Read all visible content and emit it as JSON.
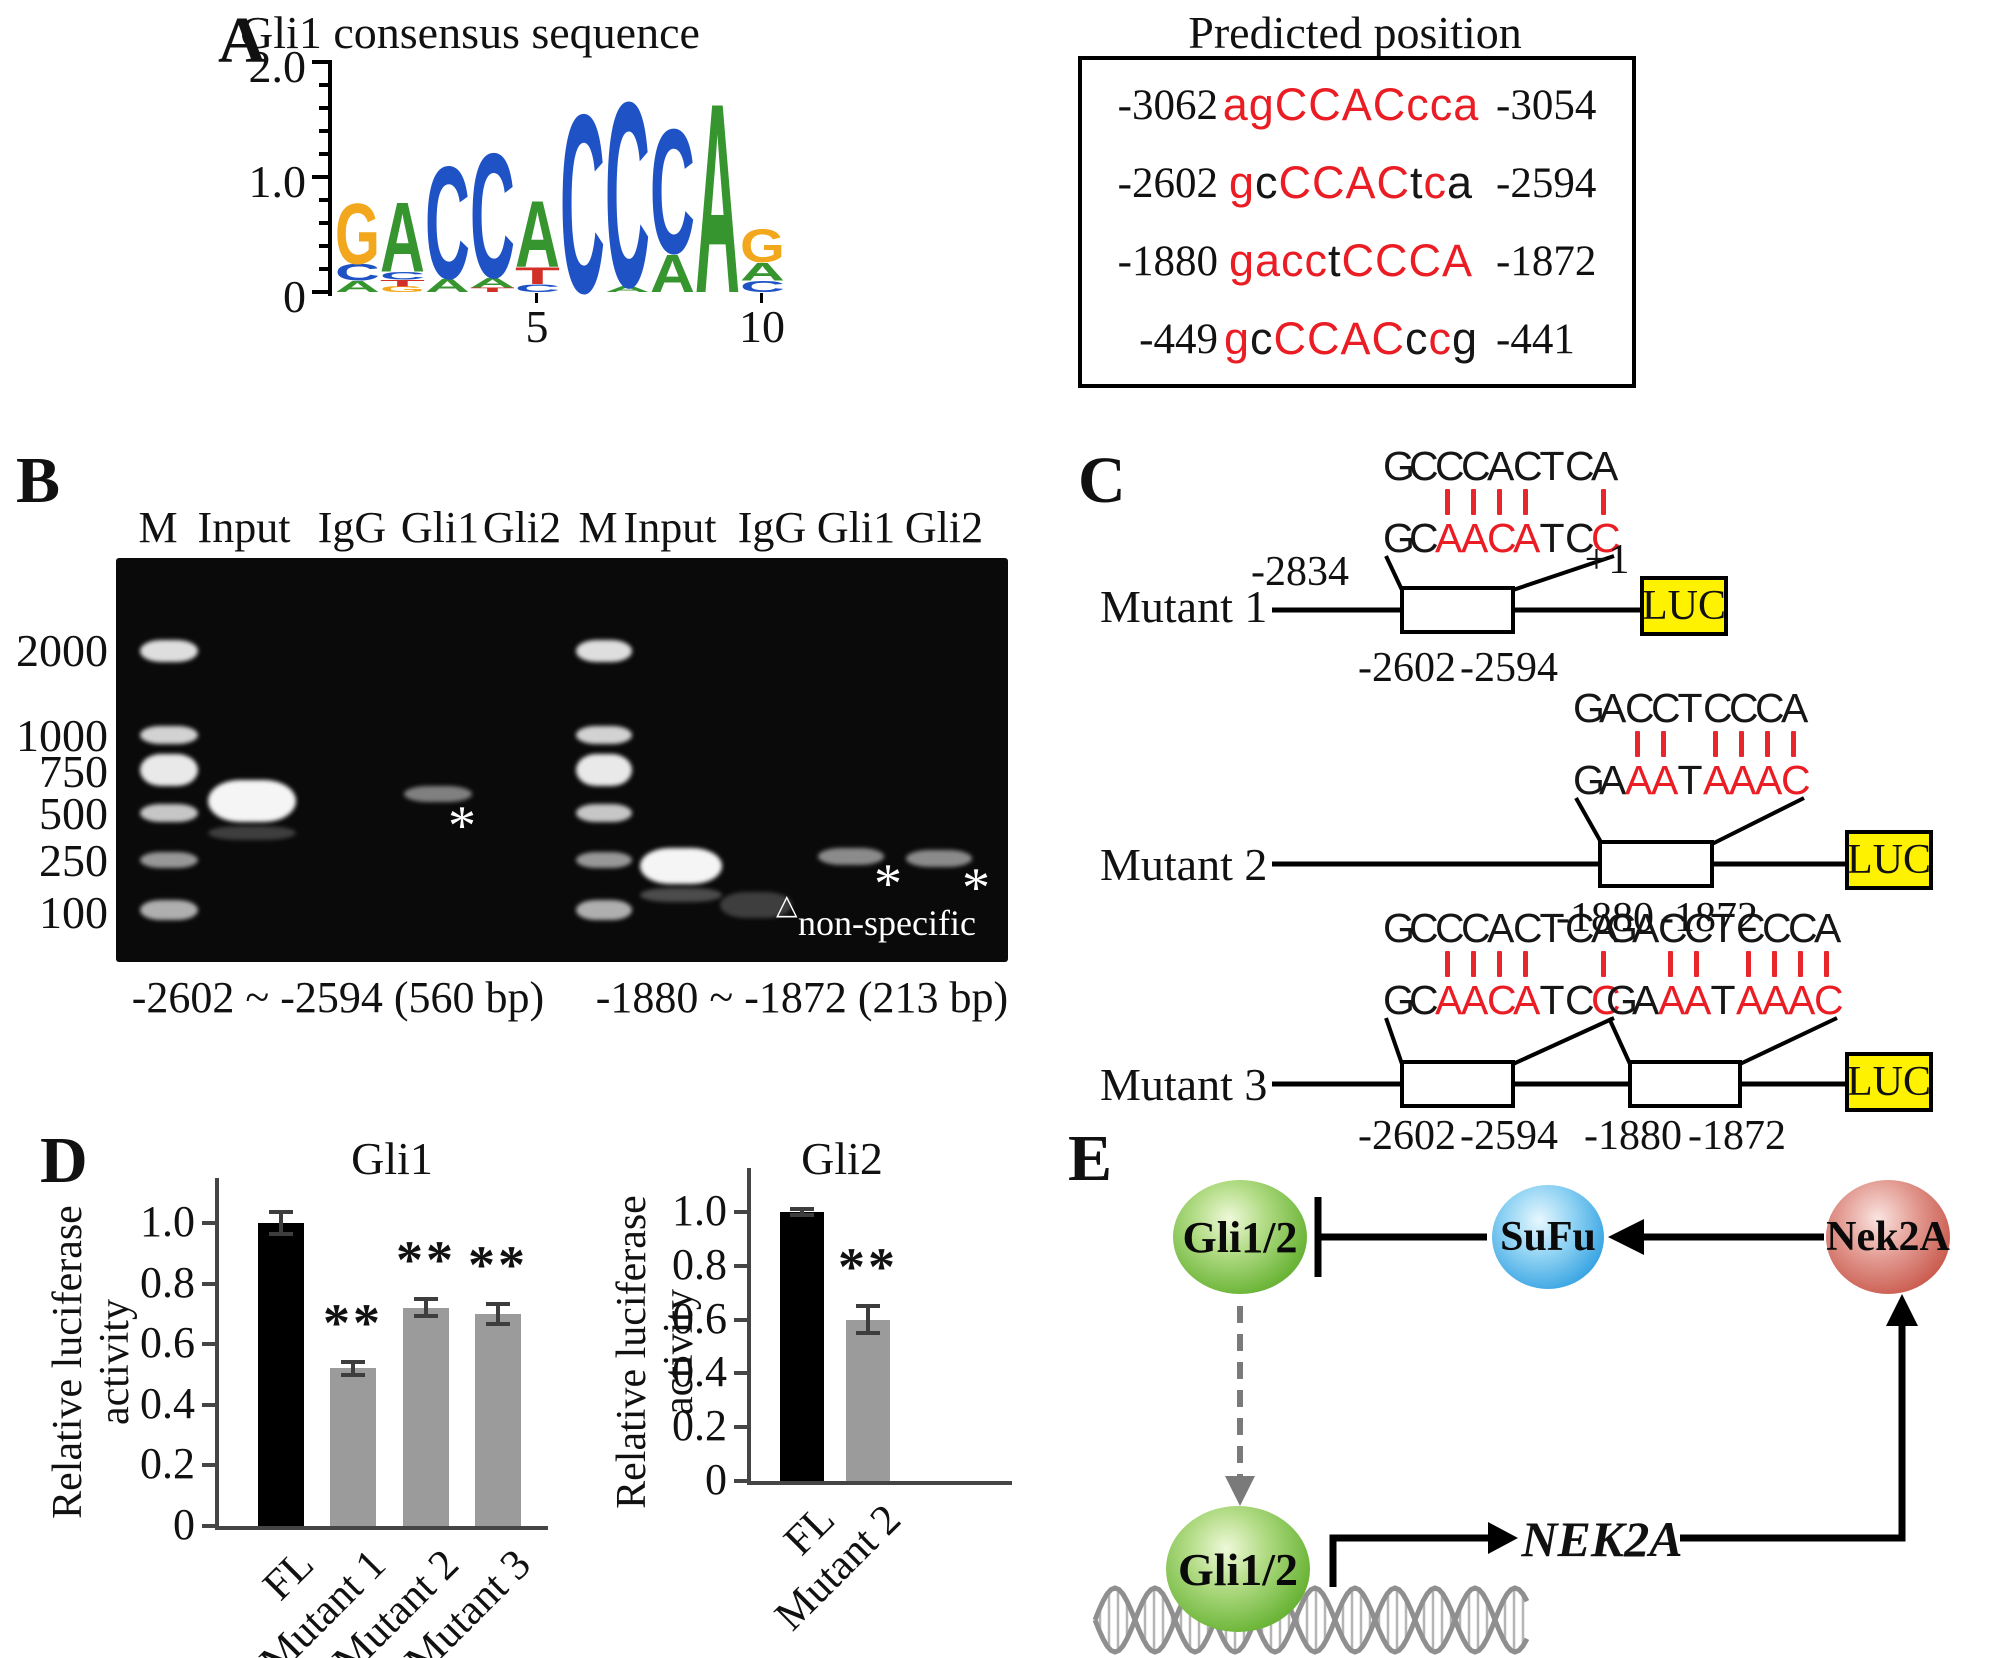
{
  "panelA": {
    "label": "A",
    "title": "Gli1 consensus sequence",
    "yticks": [
      "2.0",
      "1.0",
      "0"
    ],
    "xticks": [
      "5",
      "10"
    ],
    "logo": {
      "colors": {
        "G": "#f2a71c",
        "A": "#37952f",
        "C": "#1f53c5",
        "T": "#d22f27"
      },
      "positions": [
        [
          [
            "G",
            0.55
          ],
          [
            "C",
            0.15
          ],
          [
            "A",
            0.1
          ]
        ],
        [
          [
            "A",
            0.63
          ],
          [
            "C",
            0.07
          ],
          [
            "T",
            0.06
          ],
          [
            "G",
            0.05
          ]
        ],
        [
          [
            "C",
            1.02
          ],
          [
            "A",
            0.12
          ]
        ],
        [
          [
            "C",
            1.13
          ],
          [
            "A",
            0.09
          ],
          [
            "T",
            0.04
          ]
        ],
        [
          [
            "A",
            0.6
          ],
          [
            "T",
            0.15
          ],
          [
            "C",
            0.07
          ]
        ],
        [
          [
            "C",
            1.62
          ]
        ],
        [
          [
            "C",
            1.68
          ],
          [
            "A",
            0.05
          ]
        ],
        [
          [
            "C",
            1.13
          ],
          [
            "A",
            0.34
          ]
        ],
        [
          [
            "A",
            1.72
          ]
        ],
        [
          [
            "G",
            0.3
          ],
          [
            "A",
            0.16
          ],
          [
            "C",
            0.1
          ]
        ]
      ]
    },
    "predicted": {
      "title": "Predicted position",
      "rows": [
        {
          "start": "-3062",
          "end": "-3054",
          "segments": [
            [
              "agCCACcca",
              "r"
            ]
          ]
        },
        {
          "start": "-2602",
          "end": "-2594",
          "segments": [
            [
              "g",
              "r"
            ],
            [
              "c",
              "k"
            ],
            [
              "CCAC",
              "r"
            ],
            [
              "t",
              "k"
            ],
            [
              "c",
              "r"
            ],
            [
              "a",
              "k"
            ]
          ]
        },
        {
          "start": "-1880",
          "end": "-1872",
          "segments": [
            [
              "gacc",
              "r"
            ],
            [
              "t",
              "k"
            ],
            [
              "CCCA",
              "r"
            ]
          ]
        },
        {
          "start": "-449",
          "end": "-441",
          "segments": [
            [
              "g",
              "r"
            ],
            [
              "c",
              "k"
            ],
            [
              "CCAC",
              "r"
            ],
            [
              "c",
              "k"
            ],
            [
              "c",
              "r"
            ],
            [
              "g",
              "k"
            ]
          ]
        }
      ]
    }
  },
  "panelB": {
    "label": "B",
    "gels": [
      {
        "lanes": [
          "M",
          "Input",
          "IgG",
          "Gli1",
          "Gli2"
        ],
        "caption": "-2602 ~ -2594 (560 bp)"
      },
      {
        "lanes": [
          "M",
          "Input",
          "IgG",
          "Gli1",
          "Gli2"
        ],
        "caption": "-1880 ~ -1872 (213 bp)"
      }
    ],
    "ladder": [
      "2000",
      "1000",
      "750",
      "500",
      "250",
      "100"
    ],
    "asterisk": "*",
    "triangle": "△",
    "nonspecific_label": "non-specific"
  },
  "panelC": {
    "label": "C",
    "luc_label": "LUC",
    "mutants": [
      {
        "name": "Mutant 1"
      },
      {
        "name": "Mutant 2"
      },
      {
        "name": "Mutant 3"
      }
    ],
    "alignments": [
      {
        "top": "GCCCACTCA",
        "bottom": [
          [
            "G",
            "k"
          ],
          [
            "C",
            "k"
          ],
          [
            "A",
            "r"
          ],
          [
            "A",
            "r"
          ],
          [
            "C",
            "r"
          ],
          [
            "A",
            "r"
          ],
          [
            "T",
            "k"
          ],
          [
            "C",
            "k"
          ],
          [
            "C",
            "r"
          ]
        ],
        "ticks": [
          2,
          3,
          4,
          5,
          8
        ]
      },
      {
        "top": "GACCTCCCA",
        "bottom": [
          [
            "G",
            "k"
          ],
          [
            "A",
            "k"
          ],
          [
            "A",
            "r"
          ],
          [
            "A",
            "r"
          ],
          [
            "T",
            "k"
          ],
          [
            "A",
            "r"
          ],
          [
            "A",
            "r"
          ],
          [
            "A",
            "r"
          ],
          [
            "C",
            "r"
          ]
        ],
        "ticks": [
          2,
          3,
          5,
          6,
          7,
          8
        ]
      }
    ],
    "coords": {
      "upstream": "-2834",
      "tss": "+1",
      "site1": [
        "-2602",
        "-2594"
      ],
      "site2": [
        "-1880",
        "-1872"
      ]
    }
  },
  "panelD": {
    "label": "D"
  },
  "panelE": {
    "label": "E",
    "nodes": {
      "gli_top": "Gli1/2",
      "sufu": "SuFu",
      "nek2a": "Nek2A",
      "gli_bottom": "Gli1/2",
      "gene": "NEK2A"
    }
  },
  "chart_data": [
    {
      "type": "bar",
      "title": "Gli1",
      "ylabel": "Relative luciferase\nactivity",
      "categories": [
        "FL",
        "Mutant 1",
        "Mutant 2",
        "Mutant 3"
      ],
      "values": [
        1.0,
        0.52,
        0.72,
        0.7
      ],
      "errors": [
        0.035,
        0.02,
        0.028,
        0.033
      ],
      "significance": [
        "",
        "**",
        "**",
        "**"
      ],
      "bar_colors": [
        "#000000",
        "#9b9b9b",
        "#9b9b9b",
        "#9b9b9b"
      ],
      "yticks": [
        "0",
        "0.2",
        "0.4",
        "0.6",
        "0.8",
        "1.0"
      ],
      "ylim": [
        0,
        1.15
      ],
      "grid": false,
      "legend": false
    },
    {
      "type": "bar",
      "title": "Gli2",
      "ylabel": "Relative luciferase\nactivity",
      "categories": [
        "FL",
        "Mutant 2"
      ],
      "values": [
        1.0,
        0.6
      ],
      "errors": [
        0.013,
        0.05
      ],
      "significance": [
        "",
        "**"
      ],
      "bar_colors": [
        "#000000",
        "#9b9b9b"
      ],
      "yticks": [
        "0",
        "0.2",
        "0.4",
        "0.6",
        "0.8",
        "1.0"
      ],
      "ylim": [
        0,
        1.15
      ],
      "grid": false,
      "legend": false
    }
  ]
}
